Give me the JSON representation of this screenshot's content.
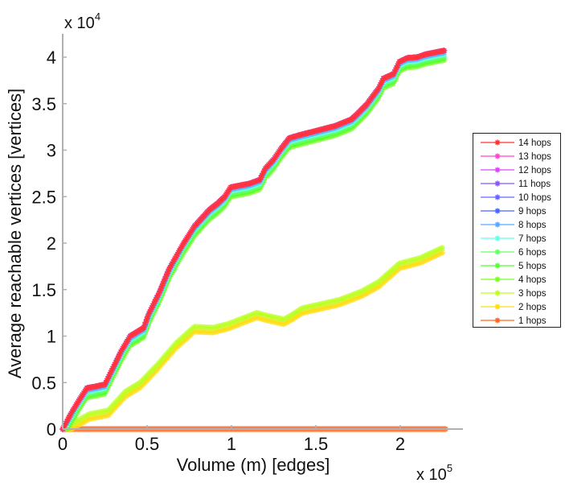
{
  "chart_data": {
    "type": "line",
    "title": "",
    "xlabel": "Volume (m) [edges]",
    "ylabel": "Average reachable vertices [vertices]",
    "x_multiplier": "x 10",
    "x_multiplier_exp": "5",
    "y_multiplier": "x 10",
    "y_multiplier_exp": "4",
    "xlim": [
      0,
      2.37
    ],
    "ylim": [
      0,
      4.2
    ],
    "x_scale_note": "x values in units of 1e5 edges",
    "y_scale_note": "y values in units of 1e4 vertices",
    "xticks": [
      0,
      0.5,
      1,
      1.5,
      2
    ],
    "xtick_labels": [
      "0",
      "0.5",
      "1",
      "1.5",
      "2"
    ],
    "yticks": [
      0,
      0.5,
      1,
      1.5,
      2,
      2.5,
      3,
      3.5,
      4
    ],
    "ytick_labels": [
      "0",
      "0.5",
      "1",
      "1.5",
      "2",
      "2.5",
      "3",
      "3.5",
      "4"
    ],
    "grid": false,
    "legend_position": "right",
    "base_curves": {
      "upper": {
        "x": [
          0,
          0.05,
          0.1,
          0.143,
          0.2,
          0.25,
          0.29,
          0.35,
          0.4,
          0.48,
          0.51,
          0.57,
          0.63,
          0.71,
          0.78,
          0.87,
          0.92,
          0.96,
          0.995,
          1.05,
          1.105,
          1.167,
          1.2,
          1.25,
          1.295,
          1.343,
          1.4,
          1.486,
          1.55,
          1.614,
          1.71,
          1.74,
          1.8,
          1.87,
          1.9,
          1.96,
          1.995,
          2.04,
          2.1,
          2.15,
          2.26
        ],
        "y": [
          0,
          0.17,
          0.32,
          0.44,
          0.46,
          0.48,
          0.63,
          0.85,
          1.0,
          1.09,
          1.24,
          1.46,
          1.72,
          1.98,
          2.18,
          2.36,
          2.43,
          2.5,
          2.6,
          2.62,
          2.64,
          2.68,
          2.8,
          2.9,
          3.02,
          3.13,
          3.16,
          3.2,
          3.23,
          3.26,
          3.33,
          3.38,
          3.49,
          3.66,
          3.77,
          3.82,
          3.95,
          3.99,
          4.0,
          4.03,
          4.07
        ]
      },
      "lower": {
        "x": [
          0,
          0.08,
          0.157,
          0.27,
          0.37,
          0.46,
          0.56,
          0.67,
          0.78,
          0.89,
          0.98,
          1.05,
          1.15,
          1.21,
          1.31,
          1.36,
          1.42,
          1.52,
          1.64,
          1.77,
          1.87,
          1.995,
          2.12,
          2.25
        ],
        "y": [
          0,
          0.08,
          0.16,
          0.2,
          0.4,
          0.5,
          0.69,
          0.92,
          1.1,
          1.09,
          1.13,
          1.18,
          1.25,
          1.22,
          1.18,
          1.23,
          1.3,
          1.34,
          1.39,
          1.48,
          1.58,
          1.78,
          1.84,
          1.95
        ]
      }
    },
    "series": [
      {
        "name": "14 hops",
        "color": "#ff3333",
        "base": "upper",
        "offset": 0.0
      },
      {
        "name": "13 hops",
        "color": "#ff44cc",
        "base": "upper",
        "offset": 0.0
      },
      {
        "name": "12 hops",
        "color": "#dd44ff",
        "base": "upper",
        "offset": 0.0
      },
      {
        "name": "11 hops",
        "color": "#8855ff",
        "base": "upper",
        "offset": 0.0
      },
      {
        "name": "10 hops",
        "color": "#6666ff",
        "base": "upper",
        "offset": 0.0
      },
      {
        "name": "9 hops",
        "color": "#4466ff",
        "base": "upper",
        "offset": 0.0
      },
      {
        "name": "8 hops",
        "color": "#55aaff",
        "base": "upper",
        "offset": -0.02
      },
      {
        "name": "7 hops",
        "color": "#66ffee",
        "base": "upper",
        "offset": -0.04
      },
      {
        "name": "6 hops",
        "color": "#66ff66",
        "base": "upper",
        "offset": -0.06
      },
      {
        "name": "5 hops",
        "color": "#55ff33",
        "base": "upper",
        "offset": -0.08
      },
      {
        "name": "4 hops",
        "color": "#77ff22",
        "base": "upper",
        "offset": -0.1
      },
      {
        "name": "3 hops",
        "color": "#bbff22",
        "base": "lower",
        "offset": 0.0
      },
      {
        "name": "2 hops",
        "color": "#ffdd11",
        "base": "lower",
        "offset": -0.05
      },
      {
        "name": "1 hops",
        "color": "#ff6622",
        "base": "zero",
        "offset": 0.0
      }
    ]
  }
}
